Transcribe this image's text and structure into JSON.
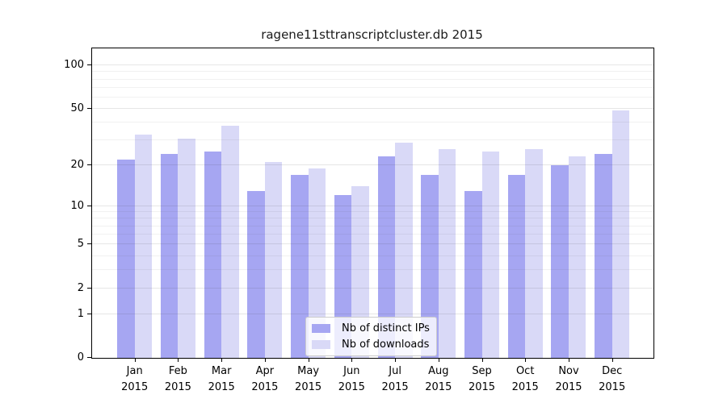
{
  "title": "ragene11sttranscriptcluster.db 2015",
  "colors": {
    "distinct_ips": "#a6a6f2",
    "downloads": "#d9d9f7",
    "axis": "#000000"
  },
  "legend": {
    "items": [
      {
        "label": "Nb of distinct IPs",
        "color": "#a6a6f2"
      },
      {
        "label": "Nb of downloads",
        "color": "#d9d9f7"
      }
    ]
  },
  "y_axis": {
    "ticks": [
      {
        "label": "0",
        "value": 0
      },
      {
        "label": "1",
        "value": 1
      },
      {
        "label": "2",
        "value": 2
      },
      {
        "label": "5",
        "value": 5
      },
      {
        "label": "10",
        "value": 10
      },
      {
        "label": "20",
        "value": 20
      },
      {
        "label": "50",
        "value": 50
      },
      {
        "label": "100",
        "value": 100
      }
    ],
    "minor_gridlines": [
      3,
      4,
      6,
      7,
      8,
      9,
      30,
      40,
      60,
      70,
      80,
      90
    ]
  },
  "x_axis": {
    "labels": [
      "Jan",
      "Feb",
      "Mar",
      "Apr",
      "May",
      "Jun",
      "Jul",
      "Aug",
      "Sep",
      "Oct",
      "Nov",
      "Dec"
    ],
    "year": "2015"
  },
  "chart_data": {
    "type": "bar",
    "title": "ragene11sttranscriptcluster.db 2015",
    "categories": [
      "Jan 2015",
      "Feb 2015",
      "Mar 2015",
      "Apr 2015",
      "May 2015",
      "Jun 2015",
      "Jul 2015",
      "Aug 2015",
      "Sep 2015",
      "Oct 2015",
      "Nov 2015",
      "Dec 2015"
    ],
    "series": [
      {
        "name": "Nb of distinct IPs",
        "color": "#a6a6f2",
        "values": [
          22,
          24,
          25,
          13,
          17,
          12,
          23,
          17,
          13,
          17,
          20,
          24
        ]
      },
      {
        "name": "Nb of downloads",
        "color": "#d9d9f7",
        "values": [
          33,
          31,
          38,
          21,
          19,
          14,
          29,
          26,
          25,
          26,
          23,
          49
        ]
      }
    ],
    "xlabel": "",
    "ylabel": "",
    "yscale": "log1p",
    "y_ticks": [
      0,
      1,
      2,
      5,
      10,
      20,
      50,
      100
    ],
    "ylim": [
      0,
      131
    ],
    "grid": true,
    "grid_on_top": true,
    "legend_position": "lower center"
  }
}
